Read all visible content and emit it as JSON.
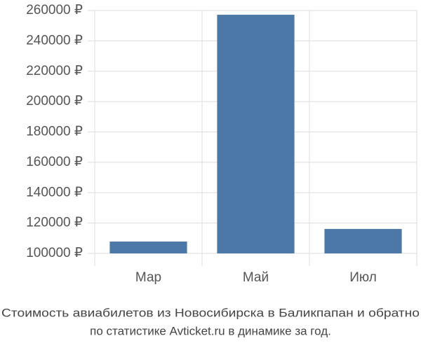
{
  "chart_data": {
    "type": "bar",
    "title": "Стоимость авиабилетов из Новосибирска в Баликпапан и обратно",
    "subtitle": "по статистике Avticket.ru в динамике за год.",
    "categories": [
      "Мар",
      "Май",
      "Июл"
    ],
    "values": [
      107800,
      257200,
      116100
    ],
    "color": "#4c78a8",
    "ylim": [
      100000,
      260000
    ],
    "yticks": [
      {
        "value": 100000,
        "label": "100000 ₽"
      },
      {
        "value": 120000,
        "label": "120000 ₽"
      },
      {
        "value": 140000,
        "label": "140000 ₽"
      },
      {
        "value": 160000,
        "label": "160000 ₽"
      },
      {
        "value": 180000,
        "label": "180000 ₽"
      },
      {
        "value": 200000,
        "label": "200000 ₽"
      },
      {
        "value": 220000,
        "label": "220000 ₽"
      },
      {
        "value": 240000,
        "label": "240000 ₽"
      },
      {
        "value": 260000,
        "label": "260000 ₽"
      }
    ],
    "grid": true
  }
}
